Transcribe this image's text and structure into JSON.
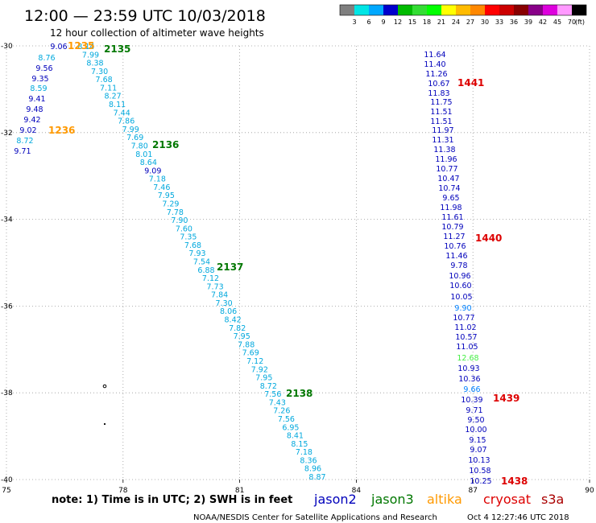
{
  "header": {
    "title": "12:00 — 23:59 UTC 10/03/2018",
    "subtitle": "12 hour collection of altimeter wave heights"
  },
  "colorbar": {
    "labels": [
      "3",
      "6",
      "9",
      "12",
      "15",
      "18",
      "21",
      "24",
      "27",
      "30",
      "33",
      "36",
      "39",
      "42",
      "45",
      "70"
    ],
    "unit": "(ft)",
    "colors": [
      "#7f7f7f",
      "#00e5e5",
      "#00a8ff",
      "#0000cc",
      "#00bb00",
      "#33dd33",
      "#00ff00",
      "#ffff00",
      "#ffbb00",
      "#ff8800",
      "#ff0000",
      "#cc0000",
      "#880000",
      "#880088",
      "#dd00dd",
      "#ff99ff",
      "#000000"
    ]
  },
  "map": {
    "lon_range": [
      75,
      90
    ],
    "lat_range": [
      -40,
      -30
    ],
    "x_tick_labels": [
      "75",
      "78",
      "81",
      "84",
      "87",
      "90"
    ],
    "y_tick_labels": [
      "-30",
      "-32",
      "-34",
      "-36",
      "-38",
      "-40"
    ],
    "gridlines": true,
    "colors": {
      "jason2": "#0000bb",
      "jason3": "#007700",
      "altika": "#ff9900",
      "cryosat": "#dd0000",
      "s3a": "#aa0000",
      "light_blue": "#00a8dd",
      "mid_blue": "#0080ff",
      "green_light": "#44ee44",
      "grid": "#999999"
    }
  },
  "tracks": [
    {
      "name": "altika-track-a",
      "values": [
        "9.06",
        "8.76",
        "9.56",
        "9.35",
        "8.59",
        "9.41",
        "9.48",
        "9.42",
        "9.02",
        "8.72",
        "9.71"
      ],
      "colors": [
        "jason2",
        "light_blue",
        "jason2",
        "jason2",
        "light_blue",
        "jason2",
        "jason2",
        "jason2",
        "jason2",
        "light_blue",
        "jason2"
      ],
      "pass_labels": [
        {
          "text": "1235",
          "color": "altika"
        },
        {
          "text": "1236",
          "color": "altika"
        }
      ]
    },
    {
      "name": "jason3-track",
      "values": [
        "8.14",
        "7.99",
        "8.38",
        "7.30",
        "7.68",
        "7.11",
        "8.27",
        "8.11",
        "7.44",
        "7.86",
        "7.99",
        "7.69",
        "7.80",
        "8.01",
        "8.64",
        "9.09",
        "7.18",
        "7.46",
        "7.95",
        "7.29",
        "7.78",
        "7.90",
        "7.60",
        "7.35",
        "7.68",
        "7.93",
        "7.54",
        "6.88",
        "7.12",
        "7.73",
        "7.84",
        "7.30",
        "8.06",
        "8.42",
        "7.82",
        "7.95",
        "7.88",
        "7.69",
        "7.12",
        "7.92",
        "7.95",
        "8.72",
        "7.56",
        "7.43",
        "7.26",
        "7.56",
        "6.95",
        "8.41",
        "8.15",
        "7.18",
        "8.36",
        "8.96",
        "8.87"
      ],
      "colors": [
        "light_blue",
        "light_blue",
        "light_blue",
        "light_blue",
        "light_blue",
        "light_blue",
        "light_blue",
        "light_blue",
        "light_blue",
        "light_blue",
        "light_blue",
        "light_blue",
        "light_blue",
        "light_blue",
        "light_blue",
        "jason2",
        "light_blue",
        "light_blue",
        "light_blue",
        "light_blue",
        "light_blue",
        "light_blue",
        "light_blue",
        "light_blue",
        "light_blue",
        "light_blue",
        "light_blue",
        "light_blue",
        "light_blue",
        "light_blue",
        "light_blue",
        "light_blue",
        "light_blue",
        "light_blue",
        "light_blue",
        "light_blue",
        "light_blue",
        "light_blue",
        "light_blue",
        "light_blue",
        "light_blue",
        "light_blue",
        "light_blue",
        "light_blue",
        "light_blue",
        "light_blue",
        "light_blue",
        "light_blue",
        "light_blue",
        "light_blue",
        "light_blue",
        "light_blue",
        "light_blue"
      ],
      "pass_labels": [
        {
          "text": "2135",
          "color": "jason3"
        },
        {
          "text": "2136",
          "color": "jason3"
        },
        {
          "text": "2137",
          "color": "jason3"
        },
        {
          "text": "2138",
          "color": "jason3"
        }
      ]
    },
    {
      "name": "cryosat-track",
      "values": [
        "11.64",
        "11.40",
        "11.26",
        "10.67",
        "11.83",
        "11.75",
        "11.51",
        "11.51",
        "11.97",
        "11.31",
        "11.38",
        "11.96",
        "10.77",
        "10.47",
        "10.74",
        "9.65",
        "11.98",
        "11.61",
        "10.79",
        "11.27",
        "10.76",
        "11.46",
        "9.78",
        "10.96",
        "10.60",
        "10.05",
        "9.90",
        "10.77",
        "11.02",
        "10.57",
        "11.05",
        "12.68",
        "10.93",
        "10.36",
        "9.66",
        "10.39",
        "9.71",
        "9.50",
        "10.00",
        "9.15",
        "9.07",
        "10.13",
        "10.58",
        "10.25"
      ],
      "colors": [
        "jason2",
        "jason2",
        "jason2",
        "jason2",
        "jason2",
        "jason2",
        "jason2",
        "jason2",
        "jason2",
        "jason2",
        "jason2",
        "jason2",
        "jason2",
        "jason2",
        "jason2",
        "jason2",
        "jason2",
        "jason2",
        "jason2",
        "jason2",
        "jason2",
        "jason2",
        "jason2",
        "jason2",
        "jason2",
        "jason2",
        "mid_blue",
        "jason2",
        "jason2",
        "jason2",
        "jason2",
        "green_light",
        "jason2",
        "jason2",
        "mid_blue",
        "jason2",
        "jason2",
        "jason2",
        "jason2",
        "jason2",
        "jason2",
        "jason2",
        "jason2",
        "jason2"
      ],
      "pass_labels": [
        {
          "text": "1441",
          "color": "cryosat"
        },
        {
          "text": "1440",
          "color": "cryosat"
        },
        {
          "text": "1439",
          "color": "cryosat"
        },
        {
          "text": "1438",
          "color": "cryosat"
        }
      ]
    }
  ],
  "note": "note:  1) Time is in UTC; 2) SWH is in feet",
  "legend": [
    {
      "label": "jason2",
      "color": "jason2"
    },
    {
      "label": "jason3",
      "color": "jason3"
    },
    {
      "label": "altika",
      "color": "altika"
    },
    {
      "label": "cryosat",
      "color": "cryosat"
    },
    {
      "label": "s3a",
      "color": "s3a"
    }
  ],
  "footer": {
    "credit": "NOAA/NESDIS Center for Satellite Applications and Research",
    "timestamp": "Oct  4 12:27:46 UTC 2018"
  }
}
